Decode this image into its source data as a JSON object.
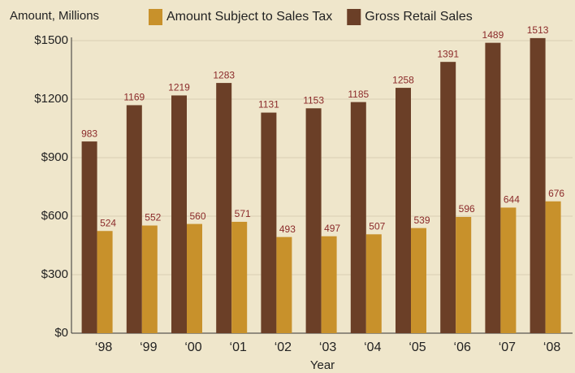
{
  "chart_data": {
    "type": "bar",
    "y_axis_label": "Amount, Millions",
    "x_axis_label": "Year",
    "categories": [
      "‘98",
      "‘99",
      "‘00",
      "‘01",
      "‘02",
      "‘03",
      "‘04",
      "‘05",
      "‘06",
      "‘07",
      "‘08"
    ],
    "series": [
      {
        "name": "Gross Retail Sales",
        "color": "#6b3f27",
        "values": [
          983,
          1169,
          1219,
          1283,
          1131,
          1153,
          1185,
          1258,
          1391,
          1489,
          1513
        ]
      },
      {
        "name": "Amount Subject to Sales Tax",
        "color": "#c8912b",
        "values": [
          524,
          552,
          560,
          571,
          493,
          497,
          507,
          539,
          596,
          644,
          676
        ]
      }
    ],
    "legend_order": [
      1,
      0
    ],
    "ylim": [
      0,
      1500
    ],
    "yticks": [
      {
        "value": 0,
        "label": "$0"
      },
      {
        "value": 300,
        "label": "$300"
      },
      {
        "value": 600,
        "label": "$600"
      },
      {
        "value": 900,
        "label": "$900"
      },
      {
        "value": 1200,
        "label": "$1200"
      },
      {
        "value": 1500,
        "label": "$1500"
      }
    ],
    "grid": true,
    "legend": "top"
  }
}
